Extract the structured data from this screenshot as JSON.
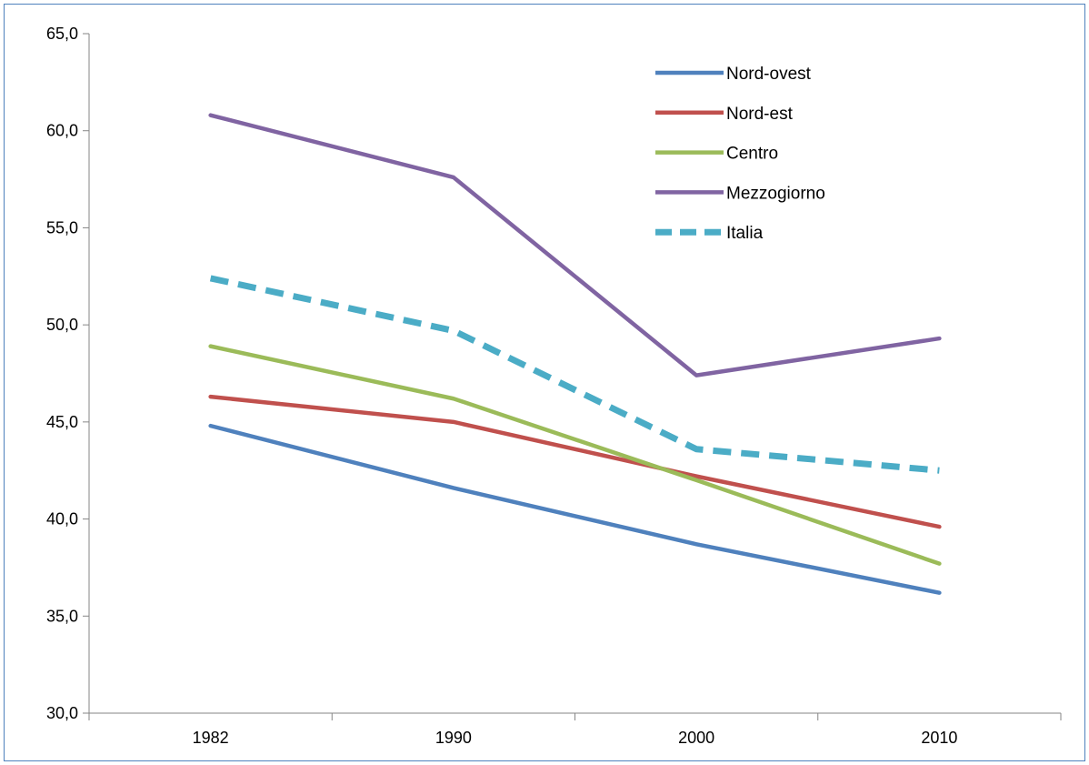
{
  "chart_data": {
    "type": "line",
    "title": "",
    "xlabel": "",
    "ylabel": "",
    "categories": [
      "1982",
      "1990",
      "2000",
      "2010"
    ],
    "ylim": [
      30,
      65
    ],
    "y_ticks": [
      "30,0",
      "35,0",
      "40,0",
      "45,0",
      "50,0",
      "55,0",
      "60,0",
      "65,0"
    ],
    "y_tick_values": [
      30,
      35,
      40,
      45,
      50,
      55,
      60,
      65
    ],
    "grid": false,
    "legend_position": "top-right",
    "series": [
      {
        "name": "Nord-ovest",
        "values": [
          44.8,
          41.6,
          38.7,
          36.2
        ],
        "color": "#4f81bd",
        "dash": false
      },
      {
        "name": "Nord-est",
        "values": [
          46.3,
          45.0,
          42.2,
          39.6
        ],
        "color": "#c0504d",
        "dash": false
      },
      {
        "name": "Centro",
        "values": [
          48.9,
          46.2,
          42.0,
          37.7
        ],
        "color": "#9bbb59",
        "dash": false
      },
      {
        "name": "Mezzogiorno",
        "values": [
          60.8,
          57.6,
          47.4,
          49.3
        ],
        "color": "#8064a2",
        "dash": false
      },
      {
        "name": "Italia",
        "values": [
          52.4,
          49.7,
          43.6,
          42.5
        ],
        "color": "#4bacc6",
        "dash": true
      }
    ]
  }
}
